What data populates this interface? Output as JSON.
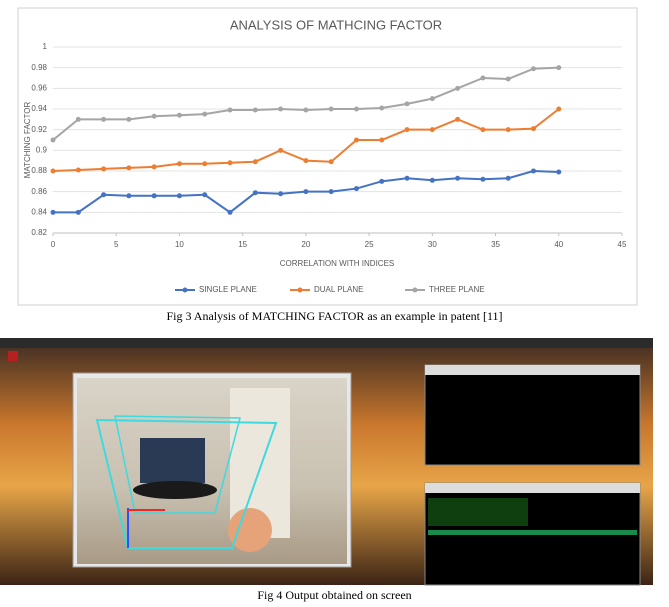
{
  "chart_data": {
    "type": "line",
    "title": "ANALYSIS OF MATHCING FACTOR",
    "xlabel": "CORRELATION WITH INDICES",
    "ylabel": "MATCHING FACTOR",
    "x": [
      0,
      2,
      4,
      6,
      8,
      10,
      12,
      14,
      16,
      18,
      20,
      22,
      24,
      26,
      28,
      30,
      32,
      34,
      36,
      38,
      40
    ],
    "series": [
      {
        "name": "SINGLE PLANE",
        "color": "#4472c4",
        "values": [
          0.84,
          0.84,
          0.857,
          0.856,
          0.856,
          0.856,
          0.857,
          0.84,
          0.859,
          0.858,
          0.86,
          0.86,
          0.863,
          0.87,
          0.873,
          0.871,
          0.873,
          0.872,
          0.873,
          0.88,
          0.879
        ]
      },
      {
        "name": "DUAL PLANE",
        "color": "#ed7d31",
        "values": [
          0.88,
          0.881,
          0.882,
          0.883,
          0.884,
          0.887,
          0.887,
          0.888,
          0.889,
          0.9,
          0.89,
          0.889,
          0.91,
          0.91,
          0.92,
          0.92,
          0.93,
          0.92,
          0.92,
          0.921,
          0.94
        ]
      },
      {
        "name": "THREE PLANE",
        "color": "#a5a5a5",
        "values": [
          0.91,
          0.93,
          0.93,
          0.93,
          0.933,
          0.934,
          0.935,
          0.939,
          0.939,
          0.94,
          0.939,
          0.94,
          0.94,
          0.941,
          0.945,
          0.95,
          0.96,
          0.97,
          0.969,
          0.979,
          0.98
        ]
      }
    ],
    "xlim": [
      0,
      45
    ],
    "xticks": [
      0,
      5,
      10,
      15,
      20,
      25,
      30,
      35,
      40,
      45
    ],
    "ylim": [
      0.82,
      1
    ],
    "yticks": [
      0.82,
      0.84,
      0.86,
      0.88,
      0.9,
      0.92,
      0.94,
      0.96,
      0.98,
      1
    ],
    "grid": true,
    "legend": "bottom"
  },
  "captions": {
    "fig3": "Fig 3 Analysis of MATCHING FACTOR as an example in patent [11]",
    "fig4": "Fig 4 Output obtained on screen"
  }
}
